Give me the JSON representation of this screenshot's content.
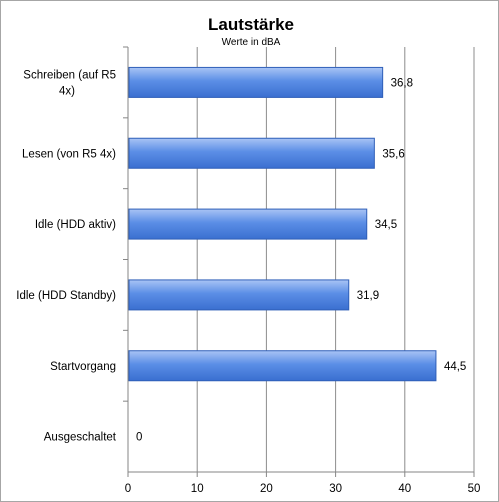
{
  "chart_data": {
    "type": "bar",
    "orientation": "horizontal",
    "title": "Lautstärke",
    "subtitle": "Werte in dBA",
    "categories": [
      [
        "Schreiben (auf R5",
        "4x)"
      ],
      [
        "Lesen (von R5 4x)"
      ],
      [
        "Idle (HDD aktiv)"
      ],
      [
        "Idle (HDD Standby)"
      ],
      [
        "Startvorgang"
      ],
      [
        "Ausgeschaltet"
      ]
    ],
    "values": [
      36.8,
      35.6,
      34.5,
      31.9,
      44.5,
      0
    ],
    "value_labels": [
      "36,8",
      "35,6",
      "34,5",
      "31,9",
      "44,5",
      "0"
    ],
    "xlim": [
      0,
      50
    ],
    "x_ticks": [
      0,
      10,
      20,
      30,
      40,
      50
    ],
    "grid": true,
    "legend": "none",
    "colors": {
      "bar_top": "#a9c4f5",
      "bar_mid": "#5b8ee6",
      "bar_bottom": "#3a6fd0",
      "bar_stroke": "#2f5fb8",
      "grid": "#8c8c8c",
      "axis": "#868686"
    }
  }
}
